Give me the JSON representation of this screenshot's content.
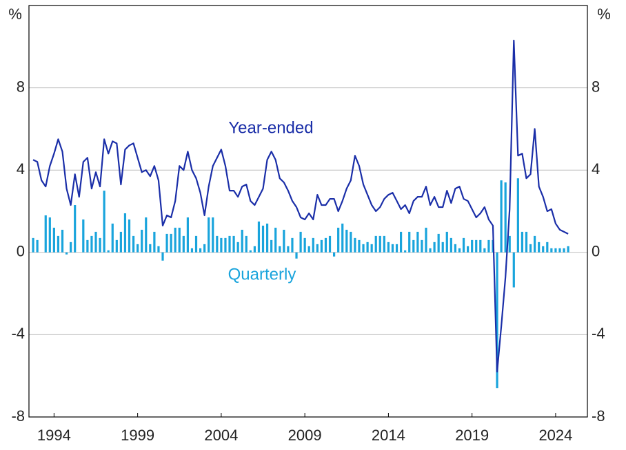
{
  "chart_data": {
    "type": "bar-line",
    "y_label": "%",
    "xlim": [
      1992.5,
      2025.9
    ],
    "xticks": [
      1994,
      1999,
      2004,
      2009,
      2014,
      2019,
      2024
    ],
    "ylim": [
      -8,
      12
    ],
    "yticks": [
      -8,
      -4,
      0,
      4,
      8
    ],
    "grid": true,
    "x": [
      1992.75,
      1993,
      1993.25,
      1993.5,
      1993.75,
      1994,
      1994.25,
      1994.5,
      1994.75,
      1995,
      1995.25,
      1995.5,
      1995.75,
      1996,
      1996.25,
      1996.5,
      1996.75,
      1997,
      1997.25,
      1997.5,
      1997.75,
      1998,
      1998.25,
      1998.5,
      1998.75,
      1999,
      1999.25,
      1999.5,
      1999.75,
      2000,
      2000.25,
      2000.5,
      2000.75,
      2001,
      2001.25,
      2001.5,
      2001.75,
      2002,
      2002.25,
      2002.5,
      2002.75,
      2003,
      2003.25,
      2003.5,
      2003.75,
      2004,
      2004.25,
      2004.5,
      2004.75,
      2005,
      2005.25,
      2005.5,
      2005.75,
      2006,
      2006.25,
      2006.5,
      2006.75,
      2007,
      2007.25,
      2007.5,
      2007.75,
      2008,
      2008.25,
      2008.5,
      2008.75,
      2009,
      2009.25,
      2009.5,
      2009.75,
      2010,
      2010.25,
      2010.5,
      2010.75,
      2011,
      2011.25,
      2011.5,
      2011.75,
      2012,
      2012.25,
      2012.5,
      2012.75,
      2013,
      2013.25,
      2013.5,
      2013.75,
      2014,
      2014.25,
      2014.5,
      2014.75,
      2015,
      2015.25,
      2015.5,
      2015.75,
      2016,
      2016.25,
      2016.5,
      2016.75,
      2017,
      2017.25,
      2017.5,
      2017.75,
      2018,
      2018.25,
      2018.5,
      2018.75,
      2019,
      2019.25,
      2019.5,
      2019.75,
      2020,
      2020.25,
      2020.5,
      2020.75,
      2021,
      2021.25,
      2021.5,
      2021.75,
      2022,
      2022.25,
      2022.5,
      2022.75,
      2023,
      2023.25,
      2023.5,
      2023.75,
      2024,
      2024.25,
      2024.5,
      2024.75
    ],
    "series": [
      {
        "name": "Quarterly",
        "kind": "bar",
        "color": "#19a4dc",
        "values": [
          0.7,
          0.6,
          0.0,
          1.8,
          1.7,
          1.2,
          0.8,
          1.1,
          -0.1,
          0.5,
          2.3,
          0.0,
          1.6,
          0.6,
          0.8,
          1.0,
          0.7,
          3.0,
          0.1,
          1.4,
          0.6,
          1.0,
          1.9,
          1.6,
          0.8,
          0.4,
          1.1,
          1.7,
          0.4,
          1.0,
          0.3,
          -0.4,
          0.9,
          0.9,
          1.2,
          1.2,
          0.8,
          1.7,
          0.2,
          0.8,
          0.2,
          0.4,
          1.7,
          1.7,
          0.8,
          0.7,
          0.7,
          0.8,
          0.8,
          0.5,
          1.1,
          0.8,
          0.1,
          0.3,
          1.5,
          1.3,
          1.4,
          0.6,
          1.2,
          0.3,
          1.1,
          0.3,
          0.7,
          -0.3,
          1.0,
          0.7,
          0.3,
          0.7,
          0.4,
          0.6,
          0.7,
          0.8,
          -0.2,
          1.2,
          1.4,
          1.1,
          1.0,
          0.7,
          0.6,
          0.4,
          0.5,
          0.4,
          0.8,
          0.8,
          0.8,
          0.5,
          0.4,
          0.4,
          1.0,
          0.1,
          1.0,
          0.6,
          1.0,
          0.6,
          1.2,
          0.2,
          0.5,
          0.9,
          0.5,
          1.0,
          0.7,
          0.4,
          0.2,
          0.7,
          0.3,
          0.6,
          0.6,
          0.6,
          0.2,
          0.6,
          0.6,
          -6.6,
          3.5,
          3.4,
          0.8,
          -1.7,
          3.6,
          1.0,
          1.0,
          0.4,
          0.8,
          0.5,
          0.3,
          0.5,
          0.2,
          0.2,
          0.2,
          0.2,
          0.3
        ]
      },
      {
        "name": "Year-ended",
        "kind": "line",
        "color": "#1a2ea8",
        "values": [
          4.5,
          4.4,
          3.5,
          3.2,
          4.2,
          4.8,
          5.5,
          4.9,
          3.1,
          2.3,
          3.8,
          2.7,
          4.4,
          4.6,
          3.1,
          3.9,
          3.2,
          5.5,
          4.8,
          5.4,
          5.3,
          3.3,
          5.0,
          5.2,
          5.3,
          4.6,
          3.9,
          4.0,
          3.7,
          4.2,
          3.5,
          1.3,
          1.8,
          1.7,
          2.5,
          4.2,
          4.0,
          4.9,
          4.0,
          3.6,
          2.9,
          1.8,
          3.2,
          4.2,
          4.6,
          5.0,
          4.2,
          3.0,
          3.0,
          2.7,
          3.2,
          3.3,
          2.5,
          2.3,
          2.7,
          3.1,
          4.5,
          4.9,
          4.5,
          3.6,
          3.4,
          3.0,
          2.5,
          2.2,
          1.7,
          1.6,
          1.9,
          1.6,
          2.8,
          2.3,
          2.3,
          2.6,
          2.6,
          2.0,
          2.5,
          3.1,
          3.5,
          4.7,
          4.2,
          3.3,
          2.8,
          2.3,
          2.0,
          2.2,
          2.6,
          2.8,
          2.9,
          2.5,
          2.1,
          2.3,
          1.9,
          2.5,
          2.7,
          2.7,
          3.2,
          2.3,
          2.7,
          2.2,
          2.2,
          3.0,
          2.4,
          3.1,
          3.2,
          2.6,
          2.5,
          2.1,
          1.7,
          1.9,
          2.2,
          1.6,
          1.3,
          -5.8,
          -3.6,
          -1.2,
          2.1,
          10.3,
          4.7,
          4.8,
          3.6,
          3.8,
          6.0,
          3.2,
          2.7,
          2.0,
          2.1,
          1.4,
          1.1,
          1.0,
          0.9
        ]
      }
    ]
  }
}
